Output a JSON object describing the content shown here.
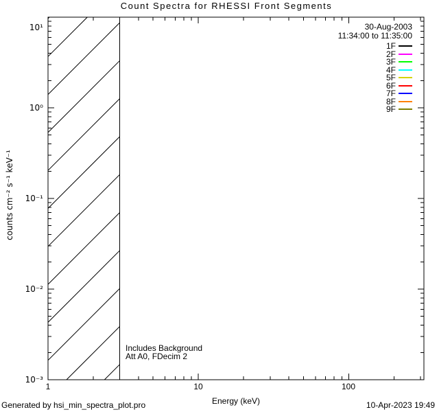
{
  "window": {
    "background": "#ffffff",
    "foreground": "#000000"
  },
  "title": "Count Spectra for RHESSI Front Segments",
  "footer": {
    "generated_by": "Generated by hsi_min_spectra_plot.pro",
    "timestamp": "10-Apr-2023 19:49"
  },
  "chart_data": {
    "type": "line",
    "title": "Count Spectra for RHESSI Front Segments",
    "xlabel": "Energy (keV)",
    "ylabel": "counts cm⁻² s⁻¹ keV⁻¹",
    "xscale": "log",
    "yscale": "log",
    "xlim": [
      1,
      316
    ],
    "ylim": [
      0.001,
      10
    ],
    "grid": false,
    "x_major_ticks": [
      1,
      10,
      100
    ],
    "x_tick_labels": [
      "1",
      "10",
      "100"
    ],
    "y_major_ticks": [
      10,
      1,
      0.1,
      0.01,
      0.001
    ],
    "y_tick_labels": [
      "10¹",
      "10⁰",
      "10⁻¹",
      "10⁻²",
      "10⁻³"
    ],
    "legend": {
      "position": "top-right",
      "date": "30-Aug-2003",
      "time_range": "11:34:00 to 11:35:00",
      "series": [
        {
          "name": "1F",
          "color": "#000000",
          "values": []
        },
        {
          "name": "2F",
          "color": "#ff00ff",
          "values": []
        },
        {
          "name": "3F",
          "color": "#00ff00",
          "values": []
        },
        {
          "name": "4F",
          "color": "#00ffff",
          "values": []
        },
        {
          "name": "5F",
          "color": "#d4d400",
          "values": []
        },
        {
          "name": "6F",
          "color": "#ff0000",
          "values": []
        },
        {
          "name": "7F",
          "color": "#0000ff",
          "values": []
        },
        {
          "name": "8F",
          "color": "#ff8000",
          "values": []
        },
        {
          "name": "9F",
          "color": "#7f7f00",
          "values": []
        }
      ]
    },
    "annotations": [
      "Includes Background",
      "Att A0, FDecim 2"
    ],
    "hatched_region": {
      "x_from": 1,
      "x_to": 3,
      "style": "diagonal-hatch",
      "note": "covers full y range, bounded by vertical line at 3 keV"
    }
  }
}
